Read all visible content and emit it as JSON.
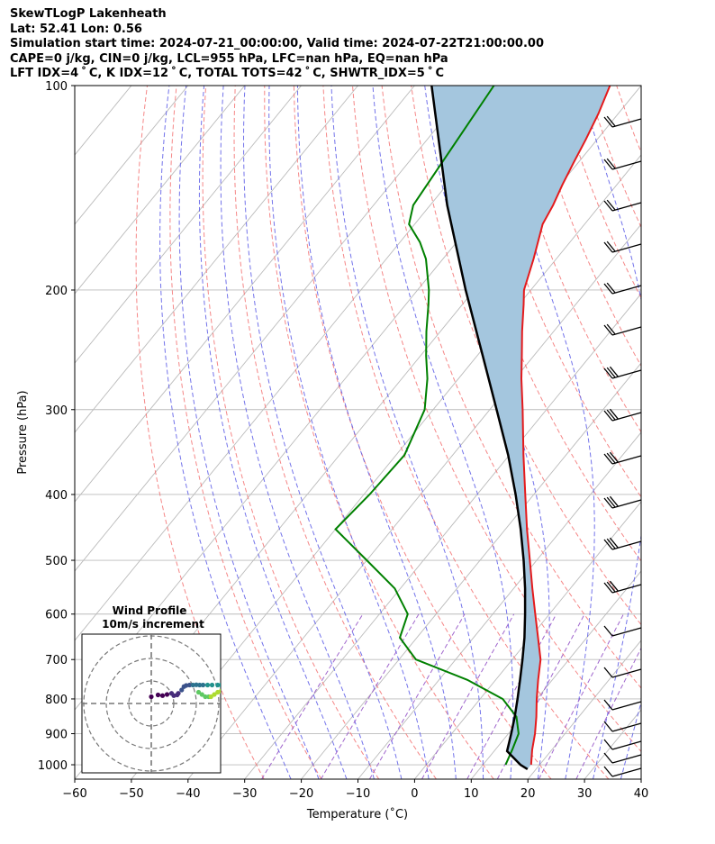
{
  "header": {
    "line1": "SkewTLogP Lakenheath",
    "line2": "Lat: 52.41   Lon: 0.56",
    "line3": "Simulation start time: 2024-07-21_00:00:00, Valid time: 2024-07-22T21:00:00.00",
    "line4": "CAPE=0 j/kg, CIN=0 j/kg, LCL=955 hPa, LFC=nan hPa, EQ=nan hPa",
    "line5": "LFT IDX=4 ˚ C, K IDX=12 ˚ C, TOTAL TOTS=42 ˚ C, SHWTR_IDX=5 ˚ C"
  },
  "colors": {
    "temperature": "#e41a1c",
    "dewpoint": "#008000",
    "parcel": "#000000",
    "shading": "#a4c6de",
    "dry_adiabat": "#f37272",
    "moist_adiabat": "#5a5ae6",
    "mixing_ratio": "#9655c8",
    "isotherm": "#bbbbbb"
  },
  "chart_data": [
    {
      "type": "line",
      "title": "",
      "xlabel": "Temperature (˚C)",
      "ylabel": "Pressure (hPa)",
      "xlim": [
        -60,
        40
      ],
      "ylim": [
        1050,
        100
      ],
      "y_scale": "log",
      "skew": true,
      "grid": true,
      "x_ticks": [
        "−60",
        "−50",
        "−40",
        "−30",
        "−20",
        "−10",
        "0",
        "10",
        "20",
        "30",
        "40"
      ],
      "y_ticks": [
        "100",
        "200",
        "300",
        "400",
        "500",
        "600",
        "700",
        "800",
        "900",
        "1000"
      ],
      "series": [
        {
          "name": "temperature",
          "p": [
            1000,
            950,
            900,
            850,
            800,
            750,
            700,
            650,
            600,
            550,
            500,
            450,
            400,
            350,
            300,
            270,
            250,
            230,
            210,
            200,
            180,
            160,
            150,
            140,
            130,
            120,
            110,
            100
          ],
          "t": [
            18.5,
            16.5,
            14.7,
            12.5,
            10.0,
            7.5,
            5.0,
            1.4,
            -2.5,
            -6.7,
            -11.2,
            -16.2,
            -21.5,
            -27.5,
            -34.2,
            -38.9,
            -42.1,
            -45.6,
            -49.2,
            -51.2,
            -54.0,
            -57.4,
            -58.3,
            -59.6,
            -60.8,
            -62.0,
            -63.5,
            -65.5
          ]
        },
        {
          "name": "dewpoint",
          "p": [
            1000,
            950,
            900,
            850,
            800,
            750,
            700,
            650,
            600,
            550,
            500,
            450,
            400,
            350,
            300,
            270,
            250,
            230,
            210,
            200,
            180,
            170,
            160,
            150,
            100
          ],
          "t": [
            14.0,
            13.0,
            11.8,
            9.0,
            4.0,
            -5.0,
            -17.0,
            -23.0,
            -25.0,
            -31.0,
            -40.0,
            -50.0,
            -49.0,
            -48.5,
            -51.5,
            -55.5,
            -59.0,
            -62.5,
            -66.0,
            -68.0,
            -73.0,
            -76.5,
            -81.0,
            -83.0,
            -86.0
          ]
        },
        {
          "name": "parcel",
          "p": [
            1015,
            1000,
            955,
            900,
            850,
            800,
            750,
            700,
            650,
            600,
            550,
            500,
            450,
            400,
            350,
            300,
            250,
            200,
            150,
            100
          ],
          "t": [
            18.5,
            16.6,
            12.3,
            10.5,
            8.7,
            6.6,
            4.3,
            1.8,
            -1.0,
            -4.3,
            -8.0,
            -12.3,
            -17.3,
            -23.2,
            -30.2,
            -38.8,
            -49.0,
            -61.5,
            -77.0,
            -97.0
          ]
        }
      ]
    },
    {
      "type": "scatter",
      "title": "Wind Profile",
      "subtitle": "10m/s increment",
      "rings_ms": [
        10,
        20,
        30
      ],
      "series": [
        {
          "name": "hodograph",
          "u": [
            0.0,
            3.0,
            5.0,
            7.0,
            9.0,
            10.0,
            11.5,
            12.0,
            13.5,
            14.5,
            15.5,
            17.0,
            18.5,
            20.0,
            21.5,
            23.0,
            25.0,
            27.0,
            29.5,
            31.0
          ],
          "v": [
            3.0,
            3.8,
            3.5,
            4.0,
            4.5,
            3.5,
            3.8,
            4.5,
            6.0,
            7.5,
            8.0,
            8.2,
            8.2,
            8.3,
            8.2,
            8.2,
            8.2,
            8.2,
            8.2,
            8.2
          ]
        },
        {
          "name": "hodograph-lower",
          "u": [
            21.0,
            22.5,
            24.0,
            25.5,
            26.5,
            28.0,
            29.5,
            31.0
          ],
          "v": [
            5.0,
            4.0,
            3.0,
            3.0,
            3.0,
            4.0,
            5.0,
            5.5
          ]
        }
      ]
    }
  ]
}
